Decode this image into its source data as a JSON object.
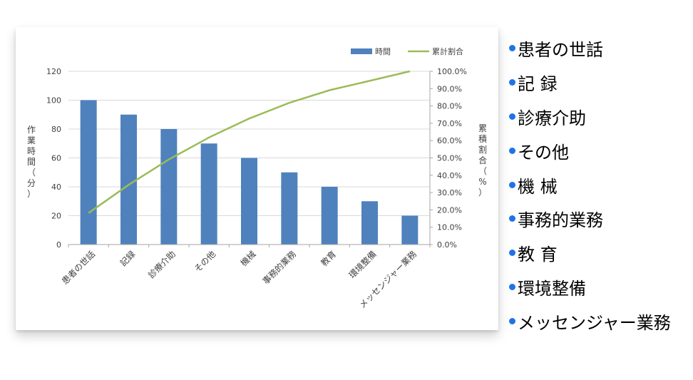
{
  "colors": {
    "bar": "#4f81bd",
    "line": "#9bbb59",
    "grid": "#d9d9d9",
    "axis_text": "#404040",
    "bullet": "#1e73e8"
  },
  "chart_data": {
    "type": "bar",
    "categories": [
      "患者の世話",
      "記録",
      "診療介助",
      "その他",
      "機械",
      "事務的業務",
      "教育",
      "環境整備",
      "メッセンジャー業務"
    ],
    "series": [
      {
        "name": "時間",
        "type": "bar",
        "axis": "left",
        "values": [
          100,
          90,
          80,
          70,
          60,
          50,
          40,
          30,
          20
        ]
      },
      {
        "name": "累計割合",
        "type": "line",
        "axis": "right",
        "values": [
          18.2,
          34.5,
          49.1,
          61.8,
          72.7,
          81.8,
          89.1,
          94.5,
          100.0
        ]
      }
    ],
    "ylabel": "作業時間（分）",
    "y2label": "累積割合（%）",
    "ylim": [
      0,
      120
    ],
    "yticks": [
      "0",
      "20",
      "40",
      "60",
      "80",
      "100",
      "120"
    ],
    "y2lim": [
      0,
      100
    ],
    "y2ticks": [
      "0.0%",
      "10.0%",
      "20.0%",
      "30.0%",
      "40.0%",
      "50.0%",
      "60.0%",
      "70.0%",
      "80.0%",
      "90.0%",
      "100.0%"
    ],
    "grid": true,
    "legend_position": "top-right"
  },
  "legend": {
    "bar_label": "時間",
    "line_label": "累計割合"
  },
  "bullets": [
    "患者の世話",
    "記 録",
    "診療介助",
    "その他",
    "機 械",
    "事務的業務",
    "教 育",
    "環境整備",
    "メッセンジャー業務"
  ]
}
